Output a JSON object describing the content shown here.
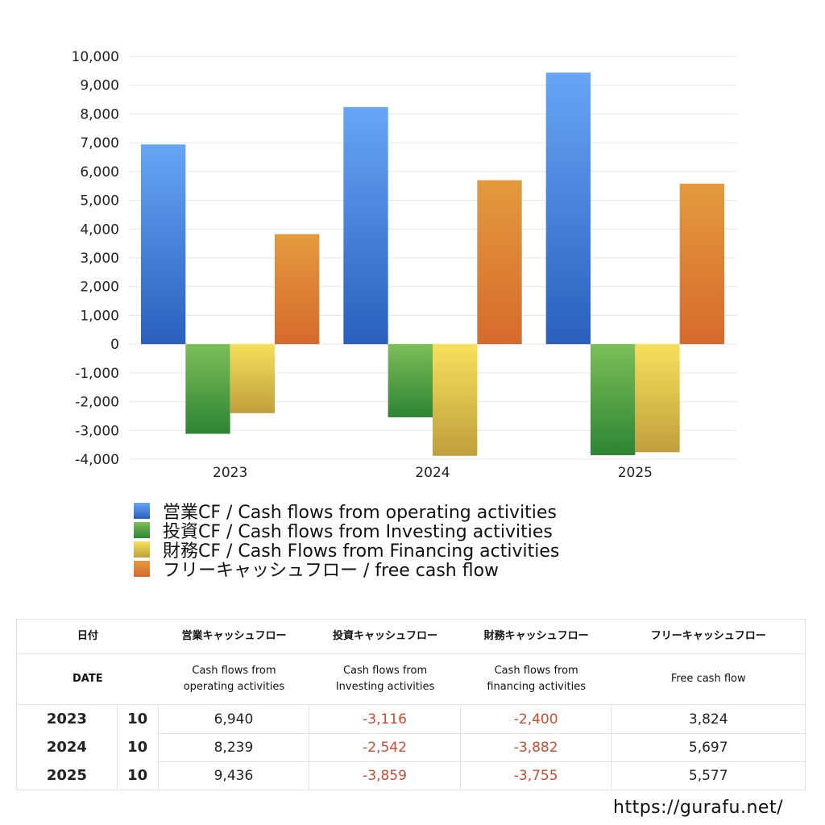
{
  "chart_data": {
    "type": "bar",
    "categories": [
      "2023",
      "2024",
      "2025"
    ],
    "series": [
      {
        "name": "営業CF / Cash flows from operating activities",
        "values": [
          6940,
          8239,
          9436
        ],
        "color_top": "#66a6f5",
        "color_bottom": "#2a5fbe"
      },
      {
        "name": "投資CF / Cash flows from Investing activities",
        "values": [
          -3116,
          -2542,
          -3859
        ],
        "color_top": "#7cbf58",
        "color_bottom": "#2d8433"
      },
      {
        "name": "財務CF / Cash Flows from Financing activities",
        "values": [
          -2400,
          -3882,
          -3755
        ],
        "color_top": "#f7e05c",
        "color_bottom": "#bf9f3c"
      },
      {
        "name": "フリーキャッシュフロー / free cash flow",
        "values": [
          3824,
          5697,
          5577
        ],
        "color_top": "#e49a3d",
        "color_bottom": "#d66a2c"
      }
    ],
    "ylim": [
      -4000,
      10000
    ],
    "yticks": [
      10000,
      9000,
      8000,
      7000,
      6000,
      5000,
      4000,
      3000,
      2000,
      1000,
      0,
      -1000,
      -2000,
      -3000,
      -4000
    ],
    "ytick_labels": [
      "10,000",
      "9,000",
      "8,000",
      "7,000",
      "6,000",
      "5,000",
      "4,000",
      "3,000",
      "2,000",
      "1,000",
      "0",
      "-1,000",
      "-2,000",
      "-3,000",
      "-4,000"
    ],
    "grid": true,
    "legend_position": "bottom"
  },
  "table": {
    "header_jp": [
      "日付",
      "営業キャッシュフロー",
      "投資キャッシュフロー",
      "財務キャッシュフロー",
      "フリーキャッシュフロー"
    ],
    "header_en": [
      "DATE",
      "Cash flows from operating activities",
      "Cash flows from Investing activities",
      "Cash flows from financing activities",
      "Free cash flow"
    ],
    "header_en_lines": [
      [
        "DATE"
      ],
      [
        "Cash flows from",
        "operating activities"
      ],
      [
        "Cash flows from",
        "Investing activities"
      ],
      [
        "Cash flows from",
        "financing activities"
      ],
      [
        "Free cash flow"
      ]
    ],
    "rows": [
      {
        "year": "2023",
        "month": "10",
        "operating": "6,940",
        "investing": "-3,116",
        "financing": "-2,400",
        "free": "3,824"
      },
      {
        "year": "2024",
        "month": "10",
        "operating": "8,239",
        "investing": "-2,542",
        "financing": "-3,882",
        "free": "5,697"
      },
      {
        "year": "2025",
        "month": "10",
        "operating": "9,436",
        "investing": "-3,859",
        "financing": "-3,755",
        "free": "5,577"
      }
    ],
    "negative_color": "#d04a30"
  },
  "footer": {
    "url": "https://gurafu.net/"
  }
}
